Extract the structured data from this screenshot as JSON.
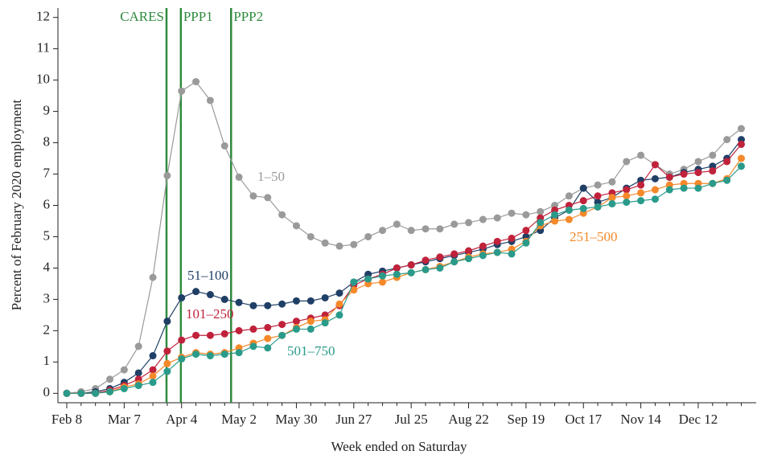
{
  "chart_data": {
    "type": "line",
    "ylabel": "Percent of February 2020 employment",
    "xlabel": "Week ended on Saturday",
    "categories": [
      "Feb 8",
      null,
      null,
      null,
      "Mar 7",
      null,
      null,
      null,
      "Apr 4",
      null,
      null,
      null,
      "May 2",
      null,
      null,
      null,
      "May 30",
      null,
      null,
      null,
      "Jun 27",
      null,
      null,
      null,
      "Jul 25",
      null,
      null,
      null,
      "Aug 22",
      null,
      null,
      null,
      "Sep 19",
      null,
      null,
      null,
      "Oct 17",
      null,
      null,
      null,
      "Nov 14",
      null,
      null,
      null,
      "Dec 12",
      null,
      null,
      null
    ],
    "ylim": [
      -0.3,
      12.3
    ],
    "yticks": [
      0,
      1,
      2,
      3,
      4,
      5,
      6,
      7,
      8,
      9,
      10,
      11,
      12
    ],
    "events": [
      {
        "label": "CARES",
        "x": 6.95
      },
      {
        "label": "PPP1",
        "x": 7.95
      },
      {
        "label": "PPP2",
        "x": 11.45
      }
    ],
    "event_color": "#2e8b3e",
    "series": [
      {
        "name": "1–50",
        "color": "#9a9a9a",
        "values": [
          0,
          0.05,
          0.15,
          0.45,
          0.75,
          1.5,
          3.7,
          6.95,
          9.65,
          9.95,
          9.35,
          7.9,
          6.9,
          6.3,
          6.25,
          5.7,
          5.35,
          5.0,
          4.8,
          4.7,
          4.75,
          5.0,
          5.2,
          5.4,
          5.2,
          5.25,
          5.25,
          5.4,
          5.45,
          5.55,
          5.6,
          5.75,
          5.7,
          5.8,
          6.0,
          6.3,
          6.55,
          6.65,
          6.75,
          7.4,
          7.6,
          7.3,
          7.0,
          7.15,
          7.4,
          7.6,
          8.1,
          8.45
        ]
      },
      {
        "name": "51–100",
        "color": "#1f3f66",
        "values": [
          0,
          0,
          0.05,
          0.15,
          0.35,
          0.65,
          1.2,
          2.3,
          3.05,
          3.25,
          3.15,
          3.0,
          2.9,
          2.8,
          2.8,
          2.85,
          2.95,
          2.95,
          3.05,
          3.2,
          3.55,
          3.8,
          3.9,
          4.0,
          4.1,
          4.2,
          4.3,
          4.4,
          4.5,
          4.6,
          4.75,
          4.85,
          5.0,
          5.2,
          5.6,
          5.85,
          6.55,
          6.1,
          6.25,
          6.55,
          6.8,
          6.85,
          6.9,
          7.05,
          7.15,
          7.25,
          7.5,
          8.1
        ]
      },
      {
        "name": "101–250",
        "color": "#c0223b",
        "values": [
          0,
          0,
          0,
          0.1,
          0.25,
          0.45,
          0.75,
          1.35,
          1.7,
          1.85,
          1.85,
          1.9,
          2.0,
          2.05,
          2.1,
          2.2,
          2.3,
          2.4,
          2.5,
          2.8,
          3.45,
          3.65,
          3.8,
          4.0,
          4.1,
          4.25,
          4.35,
          4.45,
          4.55,
          4.7,
          4.85,
          4.95,
          5.2,
          5.6,
          5.85,
          6.0,
          6.15,
          6.3,
          6.4,
          6.5,
          6.65,
          7.3,
          6.9,
          7.0,
          7.05,
          7.1,
          7.4,
          7.95
        ]
      },
      {
        "name": "251–500",
        "color": "#f5892a",
        "values": [
          0,
          0,
          0,
          0.05,
          0.2,
          0.3,
          0.55,
          0.95,
          1.15,
          1.3,
          1.25,
          1.3,
          1.45,
          1.6,
          1.75,
          1.85,
          2.1,
          2.3,
          2.35,
          2.85,
          3.3,
          3.5,
          3.55,
          3.7,
          3.85,
          3.95,
          4.05,
          4.2,
          4.35,
          4.45,
          4.5,
          4.6,
          4.85,
          5.35,
          5.5,
          5.55,
          5.75,
          5.95,
          6.25,
          6.3,
          6.4,
          6.5,
          6.65,
          6.7,
          6.7,
          6.7,
          6.85,
          7.5
        ]
      },
      {
        "name": "501–750",
        "color": "#2a9a8a",
        "values": [
          0,
          0,
          0,
          0.05,
          0.15,
          0.25,
          0.35,
          0.7,
          1.1,
          1.25,
          1.2,
          1.25,
          1.3,
          1.5,
          1.45,
          1.85,
          2.05,
          2.05,
          2.25,
          2.5,
          3.55,
          3.65,
          3.75,
          3.8,
          3.85,
          3.95,
          4.0,
          4.2,
          4.3,
          4.4,
          4.5,
          4.45,
          4.8,
          5.45,
          5.7,
          5.85,
          5.9,
          5.95,
          6.05,
          6.1,
          6.15,
          6.2,
          6.5,
          6.55,
          6.55,
          6.7,
          6.8,
          7.25
        ]
      }
    ]
  }
}
